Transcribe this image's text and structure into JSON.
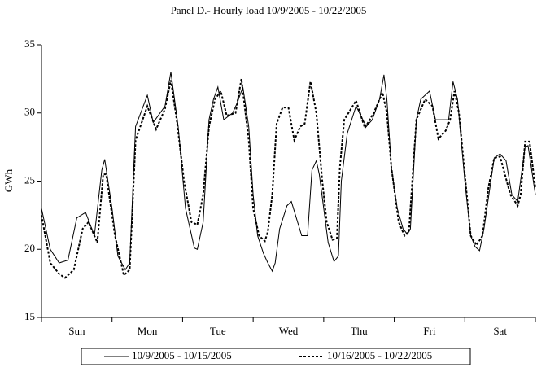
{
  "chart_data": {
    "type": "line",
    "title": "Panel D.- Hourly load 10/9/2005 - 10/22/2005",
    "y_label": "GWh",
    "categories": [
      "Sun",
      "Mon",
      "Tue",
      "Wed",
      "Thu",
      "Fri",
      "Sat"
    ],
    "xlim": [
      0,
      168
    ],
    "ylim": [
      15,
      35
    ],
    "yticks": [
      15,
      20,
      25,
      30,
      35
    ],
    "legend": "bottom",
    "series": [
      {
        "name": "10/9/2005 - 10/15/2005",
        "color": "#000000",
        "dash": "solid",
        "x": [
          0,
          3,
          6,
          9,
          12,
          15,
          18,
          20.5,
          21.5,
          24,
          26,
          28.5,
          30,
          32,
          36,
          38,
          42,
          44,
          46.5,
          49,
          52,
          53,
          55,
          57,
          58.5,
          60,
          62,
          65,
          66.5,
          68.5,
          70.5,
          72,
          73.5,
          75.5,
          77,
          78.5,
          79.5,
          81,
          83.5,
          85,
          88.5,
          90.5,
          92,
          93.5,
          94.5,
          97.5,
          99.5,
          101,
          102,
          104,
          107,
          110.5,
          112.5,
          115,
          116.5,
          117.5,
          119,
          121,
          123,
          124.5,
          125.5,
          127.5,
          129,
          132,
          134,
          137,
          138.5,
          140,
          141.5,
          144,
          146,
          147.5,
          149,
          150.5,
          154,
          156,
          158,
          160,
          162,
          164.5,
          165.5,
          168
        ],
        "values": [
          23,
          20,
          19,
          19.2,
          22.3,
          22.7,
          21,
          25.8,
          26.6,
          23,
          19.5,
          18.5,
          19,
          29,
          31.3,
          29.3,
          30.5,
          33,
          29,
          23,
          20.1,
          20,
          22,
          29.5,
          31,
          31.9,
          29.5,
          30,
          30.7,
          31.9,
          29,
          24,
          21,
          19.7,
          19,
          18.4,
          19,
          21.5,
          23.2,
          23.5,
          21,
          21,
          25.8,
          26.5,
          25.5,
          20.5,
          19.1,
          19.5,
          25,
          28.5,
          30.5,
          29,
          29.5,
          31,
          32.8,
          31,
          26,
          23,
          21.5,
          21.1,
          21.5,
          29.5,
          31,
          31.6,
          29.5,
          29.5,
          29.5,
          32.3,
          31,
          25,
          21,
          20.2,
          19.9,
          21.5,
          26.7,
          27,
          26.5,
          24,
          23.5,
          27.5,
          27.6,
          24
        ]
      },
      {
        "name": "10/16/2005 - 10/22/2005",
        "color": "#000000",
        "dash": "dotted",
        "x": [
          0,
          3,
          6,
          8,
          11,
          14,
          16,
          19,
          21,
          22,
          25,
          28,
          30,
          32,
          36,
          39,
          42,
          44,
          46,
          48.5,
          51,
          53,
          55,
          57,
          59,
          61,
          63,
          66,
          68,
          70.5,
          72,
          74,
          76,
          77,
          78.5,
          80,
          82,
          84,
          86,
          88,
          89.5,
          91.5,
          93.5,
          95.5,
          97,
          99,
          100.5,
          101.5,
          103,
          107,
          110,
          113,
          116,
          117.5,
          119,
          121.5,
          123.5,
          125,
          127.5,
          130.5,
          133,
          135,
          137.5,
          139,
          140.5,
          142,
          144,
          146,
          148,
          150,
          152,
          154,
          156,
          159.5,
          162,
          163,
          164.5,
          166,
          168
        ],
        "values": [
          22.5,
          19,
          18.2,
          17.9,
          18.5,
          21.5,
          22,
          20.5,
          25.5,
          25.5,
          21,
          18.1,
          18.5,
          28,
          30.5,
          28.8,
          30.3,
          32.4,
          29.5,
          25,
          22,
          21.8,
          24,
          29,
          31,
          31.6,
          29.8,
          30,
          32.5,
          28,
          23,
          21,
          20.6,
          21.3,
          24,
          29.2,
          30.4,
          30.4,
          28,
          29,
          29.2,
          32.3,
          30,
          25,
          22,
          20.7,
          20.8,
          26,
          29.5,
          30.9,
          28.9,
          30,
          31.5,
          30,
          26,
          22,
          21,
          21.3,
          29.5,
          31,
          30.5,
          28.1,
          28.7,
          29.5,
          31.6,
          30,
          25.5,
          21,
          20.3,
          21,
          24.5,
          26.7,
          26.8,
          24,
          23.2,
          24,
          27.9,
          27.9,
          24.5
        ]
      }
    ]
  }
}
